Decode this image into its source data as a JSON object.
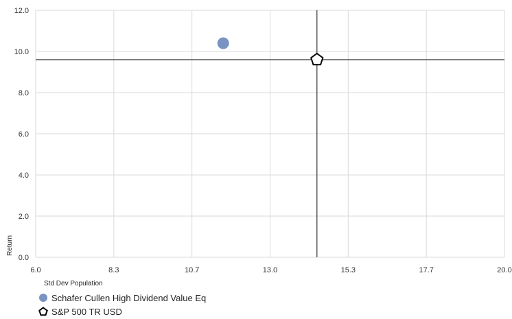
{
  "chart_data": {
    "type": "scatter",
    "xlabel": "Std Dev Population",
    "ylabel": "Return",
    "xlim": [
      6.0,
      20.0
    ],
    "ylim": [
      0.0,
      12.0
    ],
    "x_ticks": [
      "6.0",
      "8.3",
      "10.7",
      "13.0",
      "15.3",
      "17.7",
      "20.0"
    ],
    "y_ticks": [
      "0.0",
      "2.0",
      "4.0",
      "6.0",
      "8.0",
      "10.0",
      "12.0"
    ],
    "grid": true,
    "legend_position": "bottom-left",
    "crosshair": {
      "x": 14.4,
      "y": 9.6
    },
    "series": [
      {
        "name": "Schafer Cullen High Dividend Value Eq",
        "x": 11.6,
        "y": 10.4,
        "marker": "circle",
        "color": "#7a93c2"
      },
      {
        "name": "S&P 500 TR USD",
        "x": 14.4,
        "y": 9.6,
        "marker": "pentagon",
        "color": "#000000"
      }
    ]
  }
}
